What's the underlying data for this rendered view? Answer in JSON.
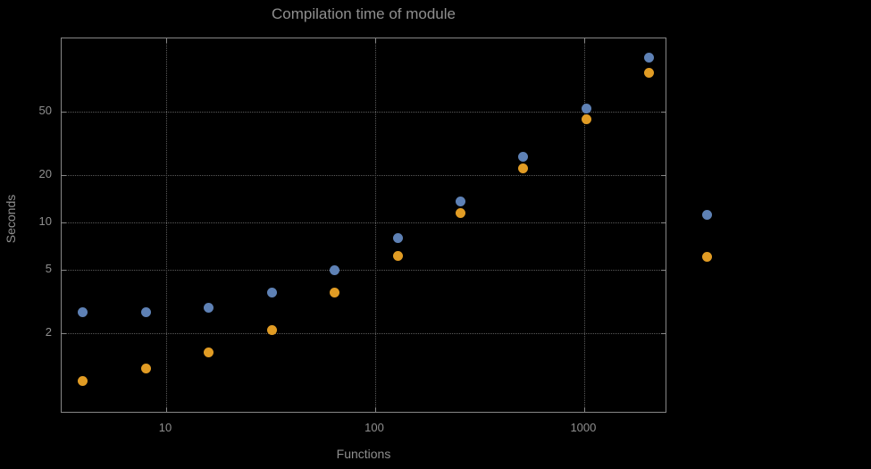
{
  "chart_data": {
    "type": "scatter",
    "title": "Compilation time of module",
    "xlabel": "Functions",
    "ylabel": "Seconds",
    "x_scale": "log",
    "y_scale": "log",
    "xlim": [
      3.16,
      2500
    ],
    "ylim": [
      0.62,
      145
    ],
    "grid": true,
    "x_ticks": [
      {
        "value": 10,
        "label": "10"
      },
      {
        "value": 100,
        "label": "100"
      },
      {
        "value": 1000,
        "label": "1000"
      }
    ],
    "y_ticks": [
      {
        "value": 2,
        "label": "2"
      },
      {
        "value": 5,
        "label": "5"
      },
      {
        "value": 10,
        "label": "10"
      },
      {
        "value": 20,
        "label": "20"
      },
      {
        "value": 50,
        "label": "50"
      }
    ],
    "x": [
      4,
      8,
      16,
      32,
      64,
      128,
      256,
      512,
      1024,
      2048
    ],
    "series": [
      {
        "name": "blue",
        "color": "#5E81B5",
        "values": [
          2.7,
          2.7,
          2.9,
          3.6,
          5.0,
          8.0,
          13.5,
          26,
          52,
          110
        ]
      },
      {
        "name": "orange",
        "color": "#E19C24",
        "values": [
          1.0,
          1.2,
          1.5,
          2.1,
          3.6,
          6.1,
          11.5,
          22,
          45,
          88
        ]
      }
    ],
    "legend": {
      "position": "right-of-plot",
      "entries": [
        {
          "color": "#5E81B5"
        },
        {
          "color": "#E19C24"
        }
      ]
    }
  },
  "colors": {
    "background": "#000000",
    "text": "#8f8f8f",
    "frame": "#878787",
    "grid": "#5a5a5a"
  }
}
